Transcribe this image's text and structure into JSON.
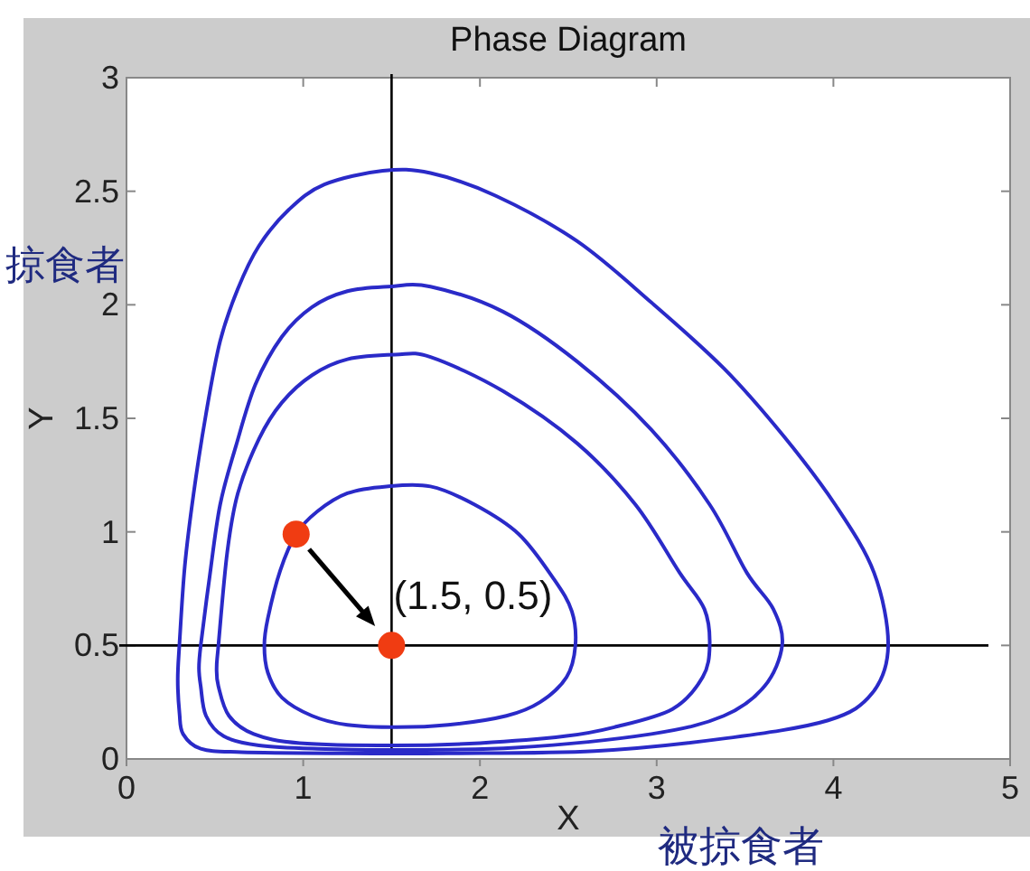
{
  "chart_data": {
    "type": "scatter",
    "title": "Phase Diagram",
    "xlabel": "X",
    "ylabel": "Y",
    "xlim": [
      0,
      5
    ],
    "ylim": [
      0,
      3
    ],
    "xticks": [
      0,
      1,
      2,
      3,
      4,
      5
    ],
    "yticks": [
      0,
      0.5,
      1,
      1.5,
      2,
      2.5,
      3
    ],
    "series": [
      {
        "color": "#f03c12",
        "marker": "circle",
        "x": [
          0.96,
          1.5
        ],
        "values": [
          0.99,
          0.5
        ]
      }
    ],
    "ref_lines": [
      {
        "axis": "x",
        "value": 1.5,
        "color": "#000000"
      },
      {
        "axis": "y",
        "value": 0.5,
        "color": "#000000"
      }
    ],
    "annotations": [
      "掠食者",
      "被掠食者",
      {
        "text": "(1.5, 0.5)",
        "x": 1.5,
        "y": 0.5
      }
    ]
  }
}
